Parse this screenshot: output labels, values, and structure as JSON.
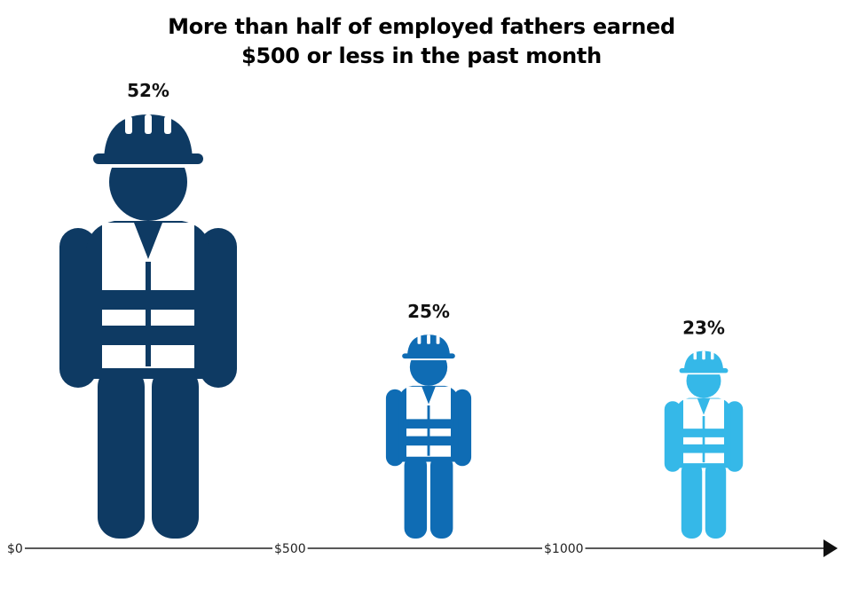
{
  "title": {
    "line1": "More than half of employed fathers earned",
    "line2": "$500 or less in the past month"
  },
  "chart_data": {
    "type": "bar",
    "title": "More than half of employed fathers earned $500 or less in the past month",
    "categories": [
      "$0–$500",
      "$500–$1000",
      "$1000+"
    ],
    "values": [
      52,
      25,
      23
    ],
    "data_labels": [
      "52%",
      "25%",
      "23%"
    ],
    "ylim": [
      0,
      52
    ],
    "axis": {
      "ticks": [
        "$0",
        "$500",
        "$1000"
      ]
    },
    "colors": [
      "#0e3a63",
      "#0f6cb4",
      "#35b8e8"
    ]
  }
}
